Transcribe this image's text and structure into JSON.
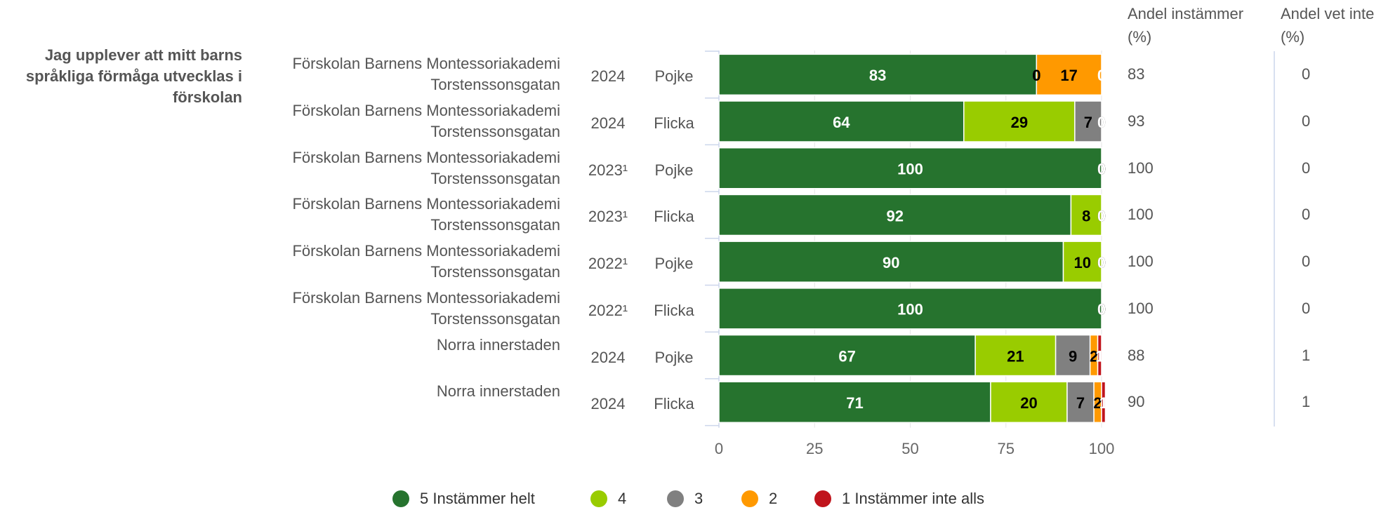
{
  "chart_data": {
    "type": "bar",
    "orientation": "horizontal",
    "stacked": true,
    "question": "Jag upplever att mitt barns språkliga förmåga utvecklas i förskolan",
    "schools": [
      "Förskolan Barnens Montessoriakademi Torstenssonsgatan",
      "Förskolan Barnens Montessoriakademi Torstenssonsgatan",
      "Förskolan Barnens Montessoriakademi Torstenssonsgatan",
      "Förskolan Barnens Montessoriakademi Torstenssonsgatan",
      "Förskolan Barnens Montessoriakademi Torstenssonsgatan",
      "Förskolan Barnens Montessoriakademi Torstenssonsgatan",
      "Norra innerstaden",
      "Norra innerstaden"
    ],
    "years": [
      "2024",
      "2024",
      "2023¹",
      "2023¹",
      "2022¹",
      "2022¹",
      "2024",
      "2024"
    ],
    "genders": [
      "Pojke",
      "Flicka",
      "Pojke",
      "Flicka",
      "Pojke",
      "Flicka",
      "Pojke",
      "Flicka"
    ],
    "series": [
      {
        "name": "5 Instämmer helt",
        "color": "#26732e",
        "label_color": "#ffffff",
        "values": [
          83,
          64,
          100,
          92,
          90,
          100,
          67,
          71
        ]
      },
      {
        "name": "4",
        "color": "#99cc00",
        "label_color": "#000000",
        "values": [
          0,
          29,
          0,
          8,
          10,
          0,
          21,
          20
        ]
      },
      {
        "name": "3",
        "color": "#808080",
        "label_color": "#000000",
        "values": [
          0,
          7,
          0,
          0,
          0,
          0,
          9,
          7
        ]
      },
      {
        "name": "2",
        "color": "#ff9900",
        "label_color": "#000000",
        "values": [
          17,
          0,
          0,
          0,
          0,
          0,
          2,
          2
        ]
      },
      {
        "name": "1 Instämmer inte alls",
        "color": "#c0141c",
        "label_color": "#ffffff",
        "values": [
          0,
          0,
          0,
          0,
          0,
          0,
          1,
          1
        ]
      }
    ],
    "xlim": [
      0,
      100
    ],
    "xticks": [
      0,
      25,
      50,
      75,
      100
    ],
    "grid": true,
    "columns": [
      {
        "header": "Andel instämmer (%)",
        "values": [
          83,
          93,
          100,
          100,
          100,
          100,
          88,
          90
        ]
      },
      {
        "header": "Andel vet inte (%)",
        "values": [
          0,
          0,
          0,
          0,
          0,
          0,
          1,
          1
        ]
      }
    ]
  }
}
